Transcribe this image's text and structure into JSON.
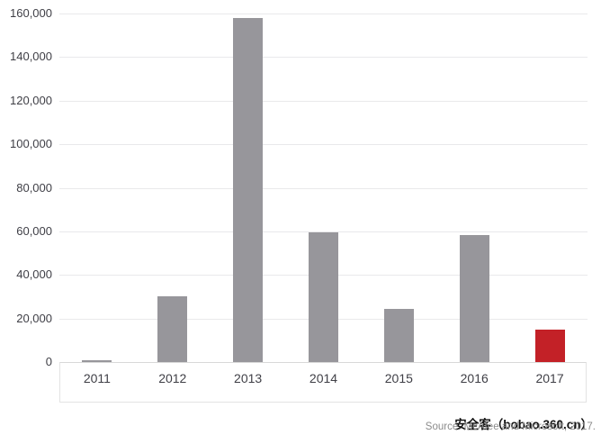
{
  "chart_data": {
    "type": "bar",
    "title": "",
    "xlabel": "",
    "ylabel": "",
    "categories": [
      "2011",
      "2012",
      "2013",
      "2014",
      "2015",
      "2016",
      "2017"
    ],
    "values": [
      1000,
      30000,
      158000,
      59500,
      24500,
      58500,
      15000
    ],
    "bar_colors": [
      "#97969B",
      "#97969B",
      "#97969B",
      "#97969B",
      "#97969B",
      "#97969B",
      "#C32127"
    ],
    "highlighted_category": "2017",
    "ylim": [
      0,
      160000
    ],
    "ytick_step": 20000,
    "ytick_labels": [
      "0",
      "20,000",
      "40,000",
      "60,000",
      "80,000",
      "100,000",
      "120,000",
      "140,000",
      "160,000"
    ],
    "grid": true,
    "legend": null
  },
  "footer": {
    "source_text": "Source: McAfee and Microsoft, 2017.",
    "watermark_text": "安全客（bobao.360.cn）"
  },
  "colors": {
    "bar_gray": "#97969B",
    "bar_red": "#C32127",
    "gridline": "#E9E9EB",
    "axis_line": "#D8D8D8",
    "box_border": "#E3E3E3",
    "tick_text": "#3F3F46",
    "source_text": "#8C8C8C",
    "watermark_text": "#111111"
  }
}
